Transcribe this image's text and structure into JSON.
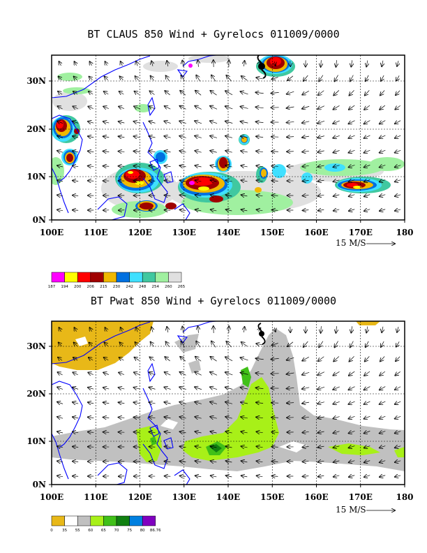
{
  "panels": [
    {
      "id": "claus",
      "title": "BT CLAUS 850 Wind + Gyrelocs 011009/0000",
      "lat_ticks": [
        "0N",
        "10N",
        "20N",
        "30N"
      ],
      "lon_ticks": [
        "100E",
        "110E",
        "120E",
        "130E",
        "140E",
        "150E",
        "160E",
        "170E",
        "180"
      ],
      "vector_ref": "15 M/S",
      "colorbar": {
        "labels": [
          "187",
          "194",
          "200",
          "206",
          "215",
          "230",
          "242",
          "248",
          "254",
          "260",
          "265"
        ],
        "colors": [
          "#ff00ff",
          "#ffff00",
          "#ff0000",
          "#a00000",
          "#f0b800",
          "#0070e0",
          "#40e0ff",
          "#40c8a0",
          "#a0f0a0",
          "#e0e0e0"
        ]
      }
    },
    {
      "id": "pwat",
      "title": "BT Pwat 850 Wind + Gyrelocs 011009/0000",
      "lat_ticks": [
        "0N",
        "10N",
        "20N",
        "30N"
      ],
      "lon_ticks": [
        "100E",
        "110E",
        "120E",
        "130E",
        "140E",
        "150E",
        "160E",
        "170E",
        "180"
      ],
      "vector_ref": "15 M/S",
      "colorbar": {
        "labels": [
          "0",
          "35",
          "55",
          "60",
          "65",
          "70",
          "75",
          "80",
          "86.76"
        ],
        "colors": [
          "#e8b818",
          "#ffffff",
          "#c0c0c0",
          "#a8f018",
          "#40c018",
          "#108010",
          "#0080e0",
          "#8000c0"
        ]
      }
    }
  ]
}
